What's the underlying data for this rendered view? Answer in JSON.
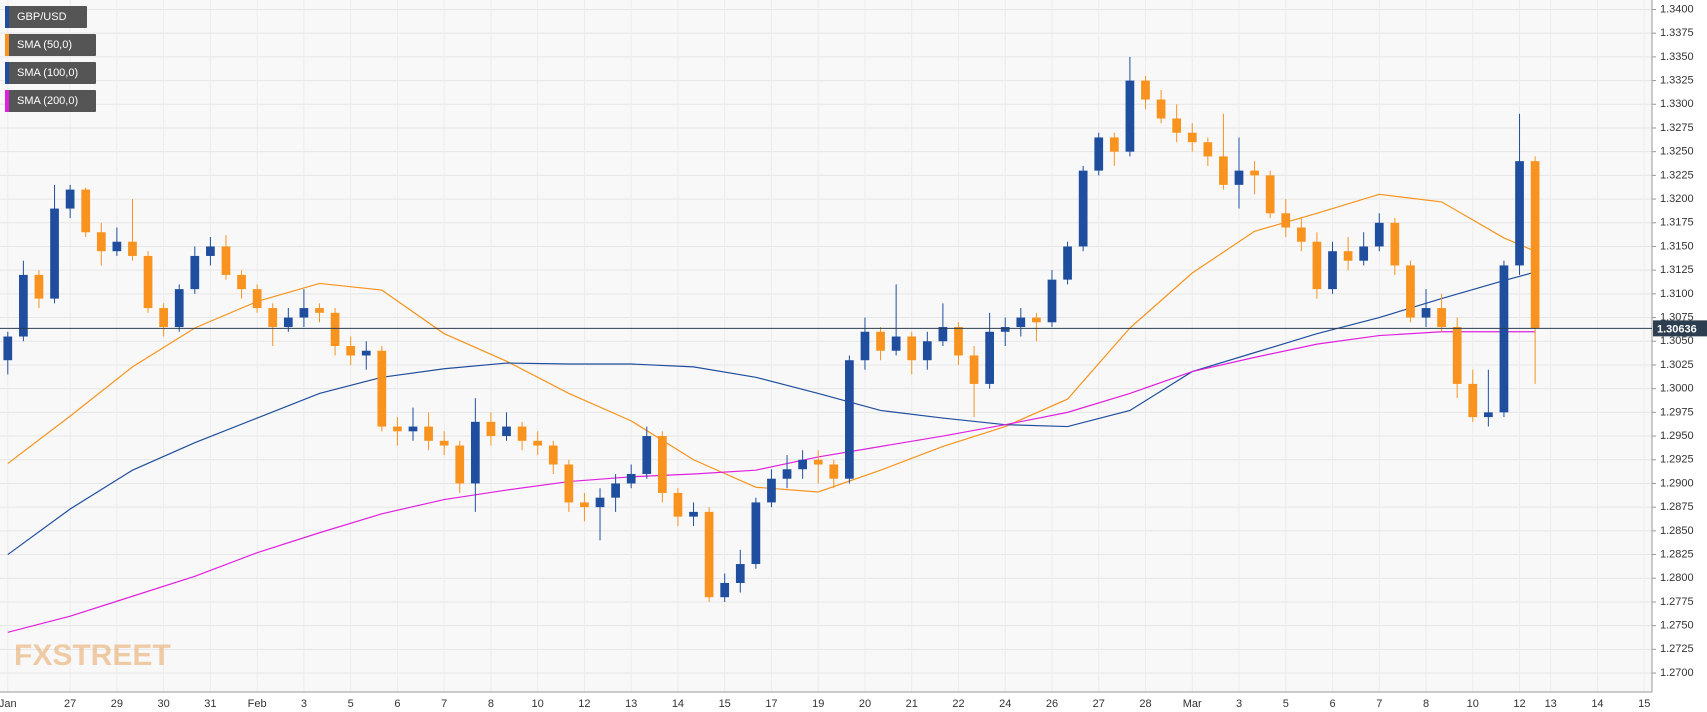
{
  "chart_data": {
    "type": "candlestick",
    "categories": [
      "Jan",
      null,
      null,
      null,
      "27",
      null,
      null,
      "29",
      null,
      null,
      "30",
      null,
      null,
      "31",
      null,
      null,
      "Feb",
      null,
      null,
      "3",
      null,
      null,
      "5",
      null,
      null,
      "6",
      null,
      null,
      "7",
      null,
      null,
      "8",
      null,
      null,
      "10",
      null,
      null,
      "12",
      null,
      null,
      "13",
      null,
      null,
      "14",
      null,
      null,
      "15",
      null,
      null,
      "17",
      null,
      null,
      "19",
      null,
      null,
      "20",
      null,
      null,
      "21",
      null,
      null,
      "22",
      null,
      null,
      "24",
      null,
      null,
      "26",
      null,
      null,
      "27",
      null,
      null,
      "28",
      null,
      null,
      "Mar",
      null,
      null,
      "3",
      null,
      null,
      "5",
      null,
      null,
      "6",
      null,
      null,
      "7",
      null,
      null,
      "8",
      null,
      null,
      "10",
      null,
      null,
      "12",
      null,
      "13",
      null,
      null,
      "14",
      null,
      null,
      "15"
    ],
    "series": [
      {
        "name": "GBP/USD",
        "up_color": "#1f4e9e",
        "down_color": "#f7931e",
        "open": [
          1.303,
          1.3055,
          1.312,
          1.3095,
          1.319,
          1.321,
          1.3165,
          1.3145,
          1.3155,
          1.314,
          1.3085,
          1.3065,
          1.3105,
          1.314,
          1.315,
          1.312,
          1.3105,
          1.3085,
          1.3065,
          1.3075,
          1.3085,
          1.308,
          1.3045,
          1.3035,
          1.304,
          1.296,
          1.2955,
          1.296,
          1.2945,
          1.294,
          1.29,
          1.2965,
          1.295,
          1.296,
          1.2945,
          1.294,
          1.292,
          1.288,
          1.2875,
          1.2885,
          1.29,
          1.291,
          1.295,
          1.289,
          1.2865,
          1.287,
          1.278,
          1.2795,
          1.2815,
          1.288,
          1.2905,
          1.2915,
          1.2925,
          1.292,
          1.2905,
          1.303,
          1.306,
          1.304,
          1.3055,
          1.303,
          1.305,
          1.3065,
          1.3035,
          1.3005,
          1.306,
          1.3065,
          1.3075,
          1.307,
          1.3115,
          1.315,
          1.323,
          1.3265,
          1.325,
          1.3325,
          1.3305,
          1.3285,
          1.327,
          1.326,
          1.3245,
          1.3215,
          1.323,
          1.3225,
          1.3185,
          1.317,
          1.3155,
          1.3105,
          1.3145,
          1.3135,
          1.315,
          1.3175,
          1.313,
          1.3075,
          1.3085,
          1.3065,
          1.3005,
          1.297,
          1.2975,
          1.313,
          1.324,
          null,
          null,
          null,
          null,
          null,
          null,
          null
        ],
        "high": [
          1.306,
          1.3135,
          1.3125,
          1.3215,
          1.3215,
          1.3212,
          1.3175,
          1.317,
          1.32,
          1.3145,
          1.309,
          1.311,
          1.315,
          1.316,
          1.3162,
          1.3125,
          1.311,
          1.309,
          1.3085,
          1.3105,
          1.309,
          1.3085,
          1.3055,
          1.305,
          1.3045,
          1.297,
          1.298,
          1.2975,
          1.2955,
          1.2945,
          1.299,
          1.2975,
          1.2975,
          1.2965,
          1.2955,
          1.2945,
          1.2925,
          1.289,
          1.2895,
          1.291,
          1.292,
          1.296,
          1.2955,
          1.2895,
          1.288,
          1.2875,
          1.2805,
          1.283,
          1.2885,
          1.2915,
          1.293,
          1.2935,
          1.2935,
          1.2925,
          1.3035,
          1.3075,
          1.3065,
          1.311,
          1.306,
          1.306,
          1.309,
          1.307,
          1.3045,
          1.308,
          1.3075,
          1.3085,
          1.308,
          1.3125,
          1.3155,
          1.3235,
          1.327,
          1.327,
          1.335,
          1.333,
          1.3315,
          1.33,
          1.328,
          1.3265,
          1.329,
          1.3265,
          1.324,
          1.323,
          1.32,
          1.318,
          1.3165,
          1.3155,
          1.316,
          1.3165,
          1.3185,
          1.318,
          1.3135,
          1.3105,
          1.31,
          1.3075,
          1.302,
          1.302,
          1.3135,
          1.329,
          1.3245,
          null,
          null,
          null,
          null,
          null,
          null,
          null
        ],
        "low": [
          1.3015,
          1.305,
          1.3085,
          1.309,
          1.318,
          1.316,
          1.313,
          1.314,
          1.3135,
          1.308,
          1.3055,
          1.306,
          1.31,
          1.313,
          1.3115,
          1.3095,
          1.308,
          1.3045,
          1.306,
          1.3065,
          1.307,
          1.3035,
          1.3025,
          1.302,
          1.2955,
          1.294,
          1.2945,
          1.2935,
          1.293,
          1.289,
          1.287,
          1.294,
          1.2945,
          1.2935,
          1.293,
          1.291,
          1.287,
          1.286,
          1.284,
          1.287,
          1.2895,
          1.2905,
          1.288,
          1.2855,
          1.2855,
          1.2775,
          1.2775,
          1.2785,
          1.281,
          1.2875,
          1.2895,
          1.2905,
          1.29,
          1.2895,
          1.29,
          1.302,
          1.303,
          1.3035,
          1.3015,
          1.302,
          1.3045,
          1.3025,
          1.297,
          1.3,
          1.3045,
          1.3055,
          1.305,
          1.3065,
          1.311,
          1.3145,
          1.3225,
          1.3235,
          1.3245,
          1.3295,
          1.328,
          1.326,
          1.325,
          1.3235,
          1.321,
          1.319,
          1.3205,
          1.318,
          1.316,
          1.3145,
          1.3095,
          1.31,
          1.3125,
          1.313,
          1.3145,
          1.312,
          1.307,
          1.3065,
          1.306,
          1.299,
          1.2965,
          1.296,
          1.297,
          1.312,
          1.3005,
          null,
          null,
          null,
          null,
          null,
          null,
          null
        ],
        "close": [
          1.3055,
          1.312,
          1.3095,
          1.319,
          1.321,
          1.3165,
          1.3145,
          1.3155,
          1.314,
          1.3085,
          1.3065,
          1.3105,
          1.314,
          1.315,
          1.312,
          1.3105,
          1.3085,
          1.3065,
          1.3075,
          1.3085,
          1.308,
          1.3045,
          1.3035,
          1.304,
          1.296,
          1.2955,
          1.296,
          1.2945,
          1.294,
          1.29,
          1.2965,
          1.295,
          1.296,
          1.2945,
          1.294,
          1.292,
          1.288,
          1.2875,
          1.2885,
          1.29,
          1.291,
          1.295,
          1.289,
          1.2865,
          1.287,
          1.278,
          1.2795,
          1.2815,
          1.288,
          1.2905,
          1.2915,
          1.2925,
          1.292,
          1.2905,
          1.303,
          1.306,
          1.304,
          1.3055,
          1.303,
          1.305,
          1.3065,
          1.3035,
          1.3005,
          1.306,
          1.3065,
          1.3075,
          1.307,
          1.3115,
          1.315,
          1.323,
          1.3265,
          1.325,
          1.3325,
          1.3305,
          1.3285,
          1.327,
          1.326,
          1.3245,
          1.3215,
          1.323,
          1.3225,
          1.3185,
          1.317,
          1.3155,
          1.3105,
          1.3145,
          1.3135,
          1.315,
          1.3175,
          1.313,
          1.3075,
          1.3085,
          1.3065,
          1.3005,
          1.297,
          1.2975,
          1.313,
          1.324,
          1.3064,
          null,
          null,
          null,
          null,
          null,
          null,
          null
        ]
      }
    ],
    "lines": [
      {
        "name": "SMA (50,0)",
        "color": "#f7931e",
        "x": [
          0,
          4,
          8,
          12,
          16,
          20,
          24,
          28,
          32,
          36,
          40,
          44,
          48,
          52,
          56,
          60,
          64,
          68,
          72,
          76,
          80,
          84,
          88,
          92,
          96,
          98
        ],
        "values": [
          1.2921,
          1.2971,
          1.3023,
          1.3064,
          1.3092,
          1.3111,
          1.3104,
          1.3058,
          1.3029,
          1.2995,
          1.2966,
          1.2925,
          1.2896,
          1.2891,
          1.2914,
          1.2939,
          1.296,
          1.2989,
          1.3064,
          1.3122,
          1.3166,
          1.3185,
          1.3205,
          1.3197,
          1.3159,
          1.3145
        ]
      },
      {
        "name": "SMA (100,0)",
        "color": "#1f4e9e",
        "x": [
          0,
          4,
          8,
          12,
          16,
          20,
          24,
          28,
          32,
          36,
          40,
          44,
          48,
          52,
          56,
          60,
          64,
          68,
          72,
          76,
          80,
          84,
          88,
          92,
          96,
          98
        ],
        "values": [
          1.2825,
          1.2873,
          1.2914,
          1.2943,
          1.2969,
          1.2995,
          1.3012,
          1.3021,
          1.3027,
          1.3026,
          1.3026,
          1.3023,
          1.3012,
          1.2995,
          1.2977,
          1.2969,
          1.2962,
          1.296,
          1.2977,
          1.3018,
          1.3038,
          1.3058,
          1.3075,
          1.3095,
          1.3114,
          1.3123
        ]
      },
      {
        "name": "SMA (200,0)",
        "color": "#e020e0",
        "x": [
          0,
          4,
          8,
          12,
          16,
          20,
          24,
          28,
          32,
          36,
          40,
          44,
          48,
          52,
          56,
          60,
          64,
          68,
          72,
          76,
          80,
          84,
          88,
          92,
          96,
          98
        ],
        "values": [
          1.2743,
          1.276,
          1.2781,
          1.2802,
          1.2827,
          1.2848,
          1.2868,
          1.2883,
          1.2893,
          1.2902,
          1.2907,
          1.291,
          1.2914,
          1.2928,
          1.2939,
          1.295,
          1.2962,
          1.2975,
          1.2995,
          1.3018,
          1.3033,
          1.3047,
          1.3056,
          1.306,
          1.306,
          1.306
        ]
      }
    ],
    "ylim": [
      1.268,
      1.341
    ],
    "yticks": [
      {
        "value": 1.27,
        "label": "1.2700"
      },
      {
        "value": 1.2725,
        "label": "1.2725"
      },
      {
        "value": 1.275,
        "label": "1.2750"
      },
      {
        "value": 1.2775,
        "label": "1.2775"
      },
      {
        "value": 1.28,
        "label": "1.2800"
      },
      {
        "value": 1.2825,
        "label": "1.2825"
      },
      {
        "value": 1.285,
        "label": "1.2850"
      },
      {
        "value": 1.2875,
        "label": "1.2875"
      },
      {
        "value": 1.29,
        "label": "1.2900"
      },
      {
        "value": 1.2925,
        "label": "1.2925"
      },
      {
        "value": 1.295,
        "label": "1.2950"
      },
      {
        "value": 1.2975,
        "label": "1.2975"
      },
      {
        "value": 1.3,
        "label": "1.3000"
      },
      {
        "value": 1.3025,
        "label": "1.3025"
      },
      {
        "value": 1.305,
        "label": "1.3050"
      },
      {
        "value": 1.3075,
        "label": "1.3075"
      },
      {
        "value": 1.31,
        "label": "1.3100"
      },
      {
        "value": 1.3125,
        "label": "1.3125"
      },
      {
        "value": 1.315,
        "label": "1.3150"
      },
      {
        "value": 1.3175,
        "label": "1.3175"
      },
      {
        "value": 1.32,
        "label": "1.3200"
      },
      {
        "value": 1.3225,
        "label": "1.3225"
      },
      {
        "value": 1.325,
        "label": "1.3250"
      },
      {
        "value": 1.3275,
        "label": "1.3275"
      },
      {
        "value": 1.33,
        "label": "1.3300"
      },
      {
        "value": 1.3325,
        "label": "1.3325"
      },
      {
        "value": 1.335,
        "label": "1.3350"
      },
      {
        "value": 1.3375,
        "label": "1.3375"
      },
      {
        "value": 1.34,
        "label": "1.3400"
      }
    ],
    "grid": true,
    "last_price": 1.30636,
    "watermark": "FXSTREET"
  }
}
